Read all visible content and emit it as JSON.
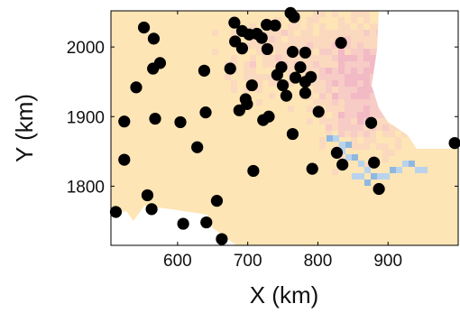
{
  "chart_data": {
    "type": "scatter",
    "xlabel": "X (km)",
    "ylabel": "Y (km)",
    "xlim": [
      505,
      1000
    ],
    "ylim": [
      1715,
      2052
    ],
    "xticks": [
      600,
      700,
      800,
      900
    ],
    "yticks": [
      1800,
      1900,
      2000
    ],
    "xtick_labels": [
      "600",
      "700",
      "800",
      "900"
    ],
    "ytick_labels": [
      "1800",
      "1900",
      "2000"
    ],
    "grid": false,
    "legend": "none",
    "background_field": {
      "type": "heatmap",
      "base_color": "#fde5b5",
      "high_color": "#f0b4c0",
      "low_color": "#a9cbe8",
      "no_data_color": "#ffffff"
    },
    "point_color": "#000000",
    "points": [
      {
        "x": 512,
        "y": 1763
      },
      {
        "x": 524,
        "y": 1893
      },
      {
        "x": 524,
        "y": 1838
      },
      {
        "x": 541,
        "y": 1942
      },
      {
        "x": 552,
        "y": 2028
      },
      {
        "x": 557,
        "y": 1787
      },
      {
        "x": 563,
        "y": 1767
      },
      {
        "x": 566,
        "y": 2012
      },
      {
        "x": 565,
        "y": 1969
      },
      {
        "x": 568,
        "y": 1897
      },
      {
        "x": 575,
        "y": 1977
      },
      {
        "x": 604,
        "y": 1892
      },
      {
        "x": 608,
        "y": 1746
      },
      {
        "x": 628,
        "y": 1856
      },
      {
        "x": 638,
        "y": 1966
      },
      {
        "x": 640,
        "y": 1906
      },
      {
        "x": 641,
        "y": 1748
      },
      {
        "x": 656,
        "y": 1779
      },
      {
        "x": 663,
        "y": 1724
      },
      {
        "x": 675,
        "y": 1969
      },
      {
        "x": 681,
        "y": 2035
      },
      {
        "x": 682,
        "y": 2008
      },
      {
        "x": 688,
        "y": 1909
      },
      {
        "x": 692,
        "y": 2023
      },
      {
        "x": 692,
        "y": 1998
      },
      {
        "x": 697,
        "y": 1925
      },
      {
        "x": 699,
        "y": 1918
      },
      {
        "x": 702,
        "y": 2018
      },
      {
        "x": 706,
        "y": 1945
      },
      {
        "x": 708,
        "y": 1822
      },
      {
        "x": 713,
        "y": 2019
      },
      {
        "x": 720,
        "y": 2013
      },
      {
        "x": 722,
        "y": 1895
      },
      {
        "x": 727,
        "y": 2032
      },
      {
        "x": 730,
        "y": 1900
      },
      {
        "x": 728,
        "y": 1997
      },
      {
        "x": 739,
        "y": 2031
      },
      {
        "x": 742,
        "y": 1960
      },
      {
        "x": 748,
        "y": 1971
      },
      {
        "x": 750,
        "y": 1945
      },
      {
        "x": 755,
        "y": 1930
      },
      {
        "x": 761,
        "y": 2049
      },
      {
        "x": 766,
        "y": 2043
      },
      {
        "x": 764,
        "y": 1993
      },
      {
        "x": 764,
        "y": 1875
      },
      {
        "x": 768,
        "y": 1956
      },
      {
        "x": 775,
        "y": 1971
      },
      {
        "x": 782,
        "y": 1992
      },
      {
        "x": 782,
        "y": 1950
      },
      {
        "x": 782,
        "y": 1934
      },
      {
        "x": 790,
        "y": 1957
      },
      {
        "x": 792,
        "y": 1825
      },
      {
        "x": 801,
        "y": 1907
      },
      {
        "x": 827,
        "y": 1848
      },
      {
        "x": 833,
        "y": 2006
      },
      {
        "x": 835,
        "y": 1831
      },
      {
        "x": 876,
        "y": 1891
      },
      {
        "x": 880,
        "y": 1834
      },
      {
        "x": 887,
        "y": 1796
      },
      {
        "x": 995,
        "y": 1862
      }
    ]
  }
}
